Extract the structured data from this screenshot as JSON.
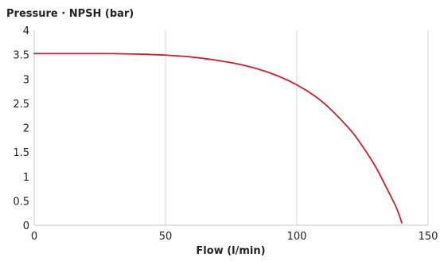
{
  "chart_data": {
    "type": "line",
    "title": "Pressure · NPSH (bar)",
    "xlabel": "Flow (l/min)",
    "ylabel": "",
    "xlim": [
      0,
      150
    ],
    "ylim": [
      0,
      4
    ],
    "x_ticks": [
      0,
      50,
      100,
      150
    ],
    "x_tick_labels": [
      "0",
      "50",
      "100",
      "150"
    ],
    "y_ticks": [
      0,
      0.5,
      1,
      1.5,
      2,
      2.5,
      3,
      3.5,
      4
    ],
    "y_tick_labels": [
      "0",
      "0.5",
      "1",
      "1.5",
      "2",
      "2.5",
      "3",
      "3.5",
      "4"
    ],
    "grid": "vertical-major",
    "legend": "none",
    "series": [
      {
        "color": "#cc1f2d",
        "x": [
          0,
          10,
          20,
          30,
          40,
          50,
          60,
          70,
          80,
          90,
          100,
          110,
          120,
          125,
          130,
          135,
          138,
          140
        ],
        "y": [
          3.52,
          3.52,
          3.52,
          3.52,
          3.51,
          3.49,
          3.45,
          3.38,
          3.28,
          3.12,
          2.88,
          2.52,
          1.98,
          1.62,
          1.2,
          0.68,
          0.35,
          0.05
        ]
      }
    ]
  }
}
